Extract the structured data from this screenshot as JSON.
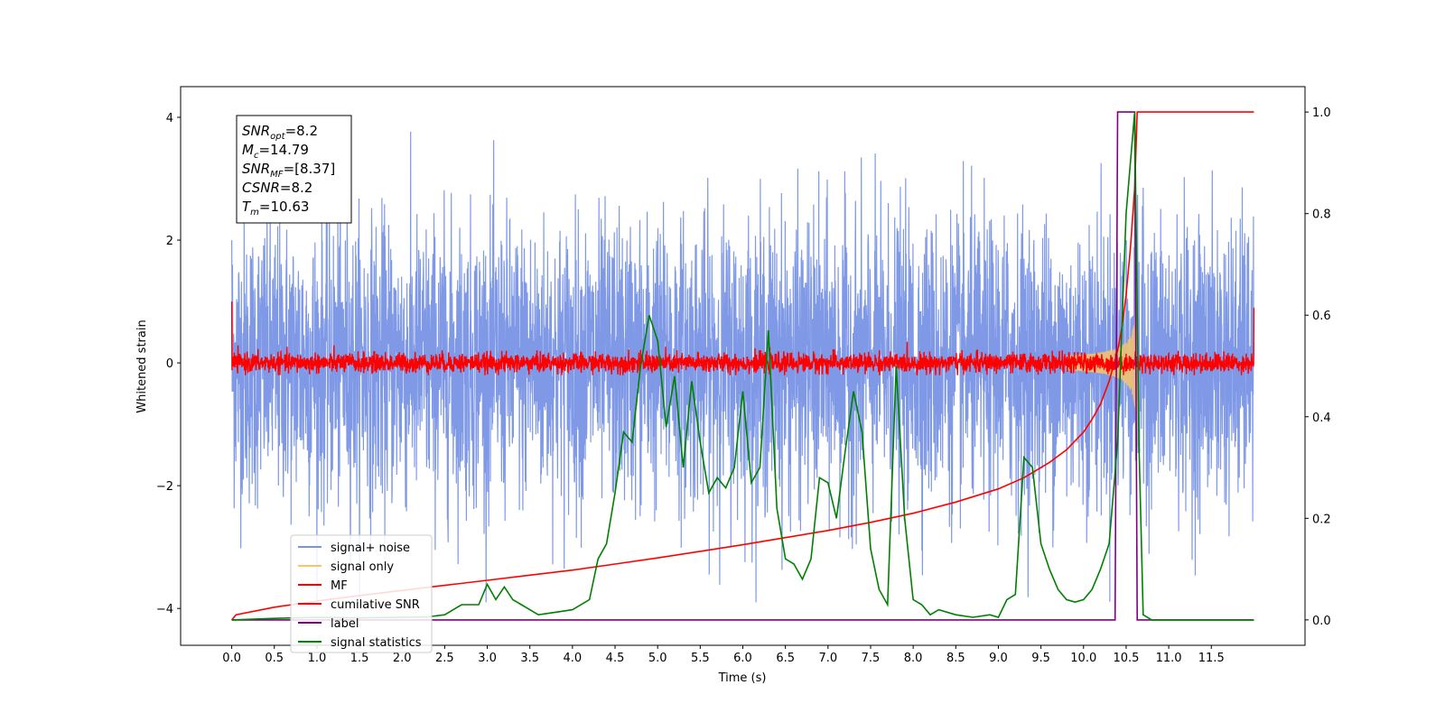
{
  "chart_data": {
    "type": "line",
    "xlabel": "Time (s)",
    "ylabel": "Whitened strain",
    "xlim": [
      -0.6,
      12.6
    ],
    "ylim_left": [
      -4.6,
      4.5
    ],
    "ylim_right": [
      -0.05,
      1.05
    ],
    "x_ticks": [
      0.0,
      0.5,
      1.0,
      1.5,
      2.0,
      2.5,
      3.0,
      3.5,
      4.0,
      4.5,
      5.0,
      5.5,
      6.0,
      6.5,
      7.0,
      7.5,
      8.0,
      8.5,
      9.0,
      9.5,
      10.0,
      10.5,
      11.0,
      11.5
    ],
    "x_tick_labels": [
      "0.0",
      "0.5",
      "1.0",
      "1.5",
      "2.0",
      "2.5",
      "3.0",
      "3.5",
      "4.0",
      "4.5",
      "5.0",
      "5.5",
      "6.0",
      "6.5",
      "7.0",
      "7.5",
      "8.0",
      "8.5",
      "9.0",
      "9.5",
      "10.0",
      "10.5",
      "11.0",
      "11.5"
    ],
    "y_left_ticks": [
      -4,
      -2,
      0,
      2,
      4
    ],
    "y_left_tick_labels": [
      "−4",
      "−2",
      "0",
      "2",
      "4"
    ],
    "y_right_ticks": [
      0.0,
      0.2,
      0.4,
      0.6,
      0.8,
      1.0
    ],
    "y_right_tick_labels": [
      "0.0",
      "0.2",
      "0.4",
      "0.6",
      "0.8",
      "1.0"
    ],
    "grid": false,
    "legend_position": "lower-left",
    "annotation": {
      "lines": [
        {
          "base": "SNR",
          "sub": "opt",
          "value": "=8.2"
        },
        {
          "base": "M",
          "sub": "c",
          "value": "=14.79"
        },
        {
          "base": "SNR",
          "sub": "MF",
          "value": "=[8.37]"
        },
        {
          "base": "CSNR",
          "sub": "",
          "value": "=8.2"
        },
        {
          "base": "T",
          "sub": "m",
          "value": "=10.63"
        }
      ]
    },
    "series": [
      {
        "name": "signal+ noise",
        "color": "#7893e6",
        "axis": "left",
        "kind": "noise",
        "x_range": [
          0.0,
          12.0
        ],
        "amplitude_std": 1.0,
        "y_extremes": [
          -3.9,
          4.05
        ]
      },
      {
        "name": "signal only",
        "color": "#f5c46b",
        "axis": "left",
        "kind": "chirp",
        "x_range": [
          9.8,
          10.63
        ],
        "peak_amplitude": 1.5
      },
      {
        "name": "MF",
        "color": "#ff0000",
        "axis": "left",
        "kind": "noise",
        "x_range": [
          0.0,
          12.0
        ],
        "amplitude_std": 0.08,
        "y_extremes": [
          -0.2,
          1.0
        ]
      },
      {
        "name": "cumilative SNR",
        "color": "#ff0000",
        "axis": "right",
        "x": [
          0.0,
          0.05,
          0.5,
          1.0,
          1.5,
          2.0,
          2.5,
          3.0,
          3.5,
          4.0,
          4.5,
          5.0,
          5.5,
          6.0,
          6.5,
          7.0,
          7.5,
          8.0,
          8.5,
          9.0,
          9.3,
          9.6,
          9.8,
          10.0,
          10.1,
          10.2,
          10.3,
          10.4,
          10.45,
          10.5,
          10.55,
          10.6,
          10.63,
          11.0,
          11.5,
          12.0
        ],
        "y": [
          0.0,
          0.01,
          0.025,
          0.037,
          0.048,
          0.058,
          0.068,
          0.078,
          0.088,
          0.098,
          0.11,
          0.122,
          0.135,
          0.148,
          0.162,
          0.176,
          0.192,
          0.21,
          0.232,
          0.258,
          0.28,
          0.31,
          0.335,
          0.37,
          0.395,
          0.425,
          0.47,
          0.53,
          0.575,
          0.64,
          0.73,
          0.85,
          1.0,
          1.0,
          1.0,
          1.0
        ]
      },
      {
        "name": "label",
        "color": "#800080",
        "axis": "right",
        "x": [
          0.0,
          10.37,
          10.4,
          10.6,
          10.63,
          12.0
        ],
        "y": [
          0.0,
          0.0,
          1.0,
          1.0,
          0.0,
          0.0
        ]
      },
      {
        "name": "signal statistics",
        "color": "#008000",
        "axis": "right",
        "x": [
          0.0,
          0.5,
          1.0,
          1.5,
          2.0,
          2.3,
          2.5,
          2.7,
          2.9,
          3.0,
          3.1,
          3.2,
          3.3,
          3.4,
          3.5,
          3.6,
          3.8,
          4.0,
          4.2,
          4.3,
          4.4,
          4.5,
          4.6,
          4.7,
          4.8,
          4.9,
          5.0,
          5.1,
          5.2,
          5.3,
          5.4,
          5.5,
          5.6,
          5.7,
          5.8,
          5.9,
          6.0,
          6.1,
          6.2,
          6.3,
          6.4,
          6.5,
          6.6,
          6.7,
          6.8,
          6.9,
          7.0,
          7.1,
          7.2,
          7.3,
          7.4,
          7.5,
          7.6,
          7.7,
          7.8,
          7.9,
          8.0,
          8.1,
          8.2,
          8.3,
          8.5,
          8.7,
          8.9,
          9.0,
          9.1,
          9.2,
          9.3,
          9.4,
          9.5,
          9.6,
          9.7,
          9.8,
          9.9,
          10.0,
          10.1,
          10.2,
          10.3,
          10.4,
          10.5,
          10.6,
          10.65,
          10.7,
          10.8,
          11.0,
          11.5,
          12.0
        ],
        "y": [
          0.0,
          0.003,
          0.005,
          0.004,
          0.005,
          0.006,
          0.01,
          0.03,
          0.03,
          0.07,
          0.04,
          0.065,
          0.04,
          0.03,
          0.02,
          0.01,
          0.015,
          0.02,
          0.04,
          0.12,
          0.15,
          0.25,
          0.37,
          0.35,
          0.5,
          0.6,
          0.55,
          0.38,
          0.48,
          0.3,
          0.47,
          0.35,
          0.25,
          0.28,
          0.26,
          0.3,
          0.45,
          0.27,
          0.3,
          0.57,
          0.22,
          0.12,
          0.11,
          0.08,
          0.12,
          0.28,
          0.27,
          0.2,
          0.33,
          0.45,
          0.37,
          0.14,
          0.06,
          0.03,
          0.5,
          0.2,
          0.04,
          0.03,
          0.01,
          0.02,
          0.01,
          0.005,
          0.01,
          0.005,
          0.04,
          0.05,
          0.32,
          0.3,
          0.15,
          0.1,
          0.06,
          0.04,
          0.035,
          0.04,
          0.06,
          0.1,
          0.15,
          0.35,
          0.8,
          1.0,
          0.35,
          0.01,
          0.0,
          0.0,
          0.0,
          0.0
        ]
      }
    ]
  }
}
